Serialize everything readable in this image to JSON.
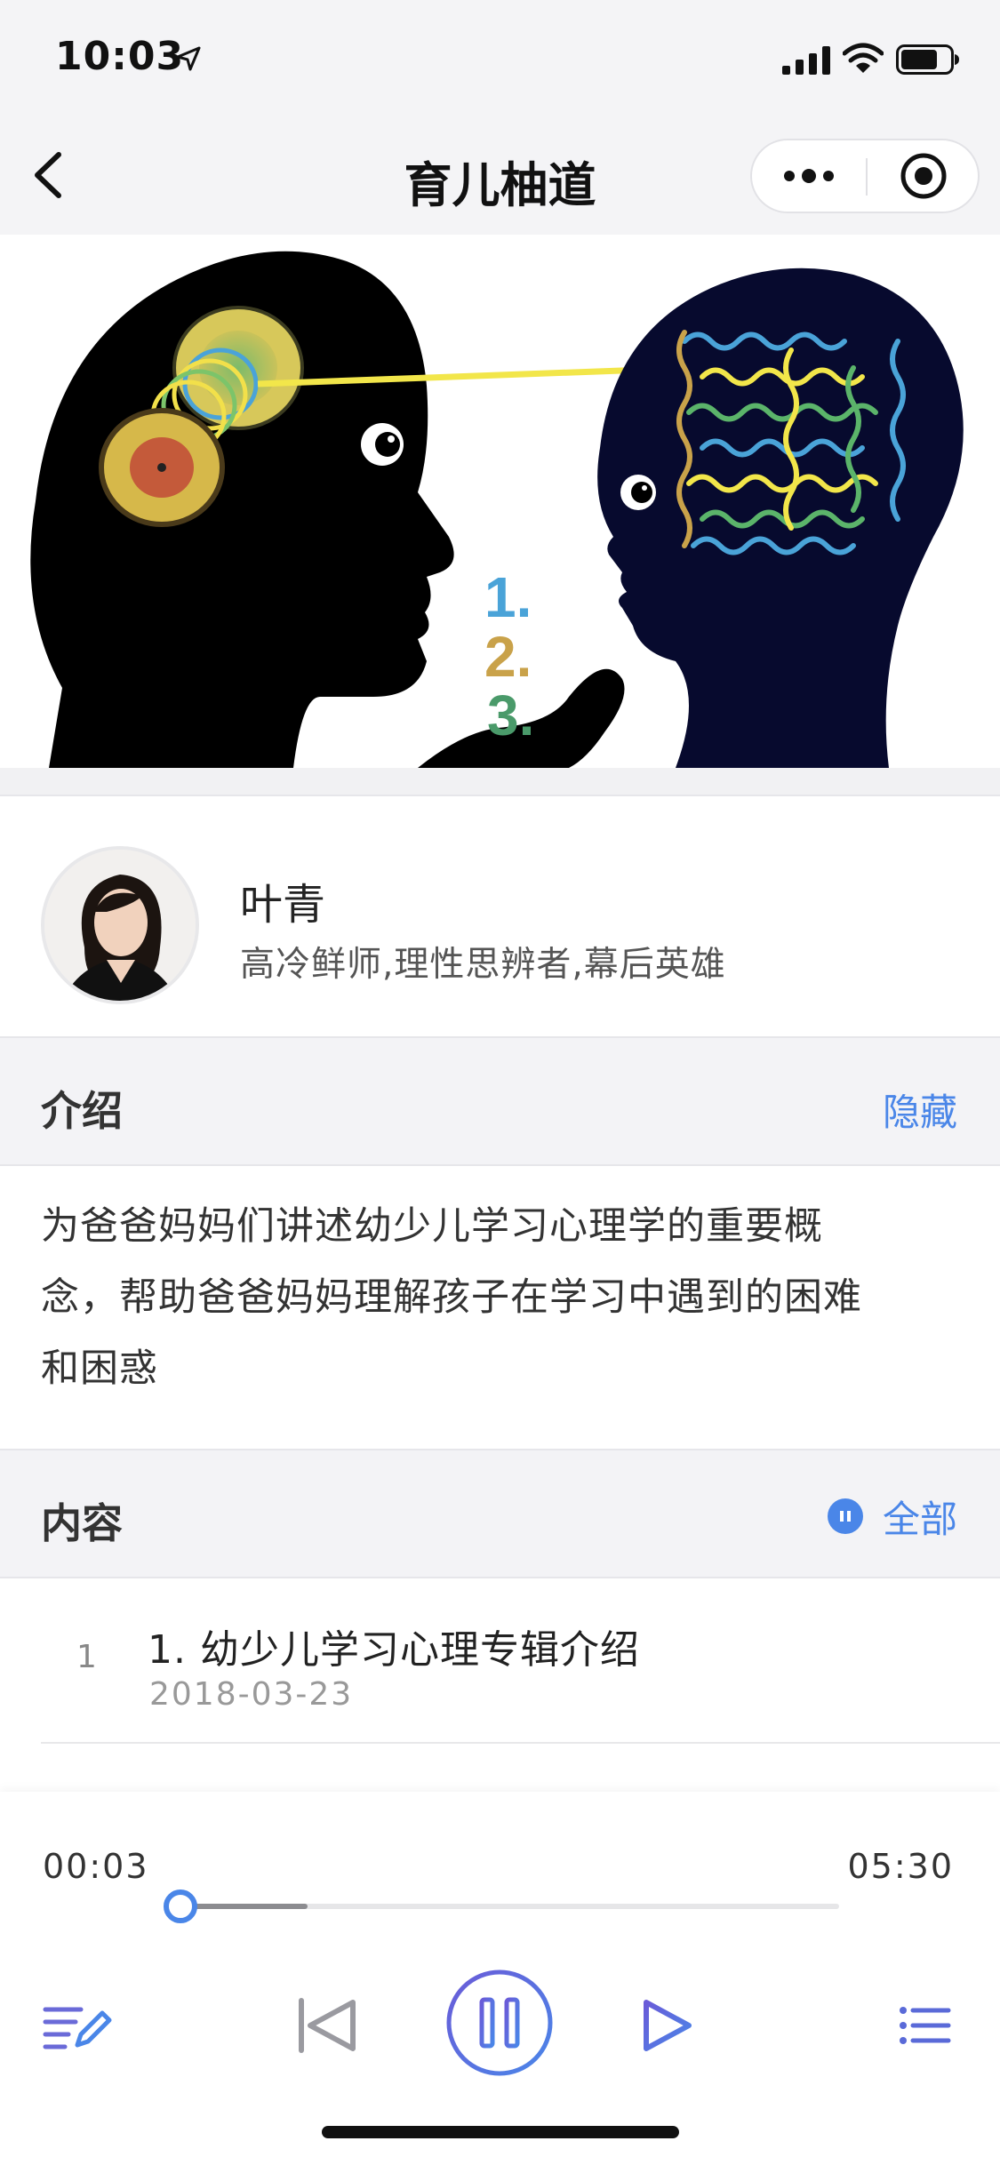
{
  "status_bar": {
    "time": "10:03"
  },
  "nav": {
    "title": "育儿柚道"
  },
  "author": {
    "name": "叶青",
    "description": "高冷鲜师,理性思辨者,幕后英雄"
  },
  "intro": {
    "title": "介绍",
    "toggle_label": "隐藏",
    "lines": [
      "为爸爸妈妈们讲述幼少儿学习心理学的重要概",
      "念，帮助爸爸妈妈理解孩子在学习中遇到的困难",
      "和困惑"
    ]
  },
  "content": {
    "title": "内容",
    "all_label": "全部",
    "items": [
      {
        "index": "1",
        "title": "1. 幼少儿学习心理专辑介绍",
        "date": "2018-03-23"
      }
    ]
  },
  "banner": {
    "numbers": [
      "1.",
      "2.",
      "3."
    ]
  },
  "player": {
    "current_time": "00:03",
    "duration": "05:30",
    "progress_fraction": 0.009,
    "buffered_fraction": 0.2,
    "state": "playing"
  },
  "colors": {
    "accent": "#4a86e8",
    "player_gradient_start": "#6a5bd8",
    "player_gradient_end": "#4a86e8"
  },
  "icons": [
    "location-arrow-icon",
    "signal-icon",
    "wifi-icon",
    "battery-icon",
    "back-chevron-icon",
    "more-dots-icon",
    "target-close-icon",
    "pause-mini-icon",
    "edit-note-icon",
    "skip-previous-icon",
    "pause-icon",
    "skip-next-icon",
    "playlist-icon"
  ]
}
